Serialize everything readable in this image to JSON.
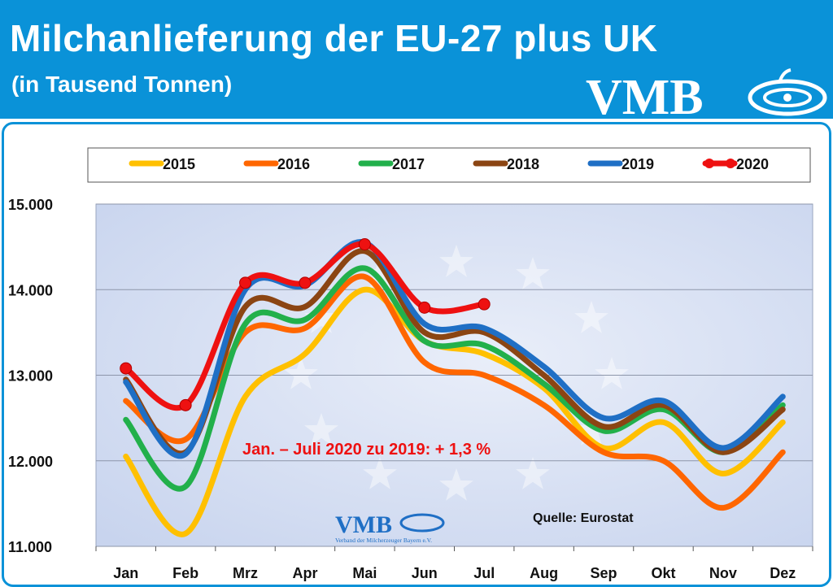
{
  "header": {
    "title": "Milchanlieferung der EU-27 plus UK",
    "subtitle": "(in Tausend Tonnen)",
    "logo_text": "VMB"
  },
  "watermark": {
    "logo_text": "VMB",
    "logo_subtext": "Verband der Milcherzeuger Bayern e.V."
  },
  "chart_data": {
    "type": "line",
    "categories": [
      "Jan",
      "Feb",
      "Mrz",
      "Apr",
      "Mai",
      "Jun",
      "Jul",
      "Aug",
      "Sep",
      "Okt",
      "Nov",
      "Dez"
    ],
    "ylim": [
      11000,
      15000
    ],
    "yticks": [
      "11.000",
      "12.000",
      "13.000",
      "14.000",
      "15.000"
    ],
    "grid": true,
    "legend_position": "top",
    "series": [
      {
        "name": "2015",
        "color": "#ffc000",
        "values": [
          12050,
          11150,
          12750,
          13250,
          14000,
          13400,
          13250,
          12850,
          12150,
          12450,
          11850,
          12450
        ]
      },
      {
        "name": "2016",
        "color": "#ff6600",
        "values": [
          12700,
          12250,
          13500,
          13550,
          14150,
          13150,
          13000,
          12650,
          12100,
          12000,
          11450,
          12100
        ]
      },
      {
        "name": "2017",
        "color": "#22b04b",
        "values": [
          12480,
          11700,
          13600,
          13650,
          14250,
          13400,
          13350,
          12900,
          12350,
          12600,
          12100,
          12650
        ]
      },
      {
        "name": "2018",
        "color": "#8b4513",
        "values": [
          12950,
          12100,
          13800,
          13800,
          14450,
          13500,
          13500,
          13000,
          12400,
          12650,
          12100,
          12600
        ]
      },
      {
        "name": "2019",
        "color": "#1f6fc5",
        "values": [
          12920,
          12080,
          14000,
          14050,
          14550,
          13600,
          13550,
          13100,
          12500,
          12700,
          12150,
          12750
        ]
      },
      {
        "name": "2020",
        "color": "#ee1111",
        "markers": true,
        "values": [
          13080,
          12650,
          14080,
          14080,
          14530,
          13790,
          13830,
          null,
          null,
          null,
          null,
          null
        ]
      }
    ],
    "annotations": [
      "Jan. – Juli 2020 zu 2019: + 1,3 %",
      "Quelle: Eurostat"
    ]
  }
}
